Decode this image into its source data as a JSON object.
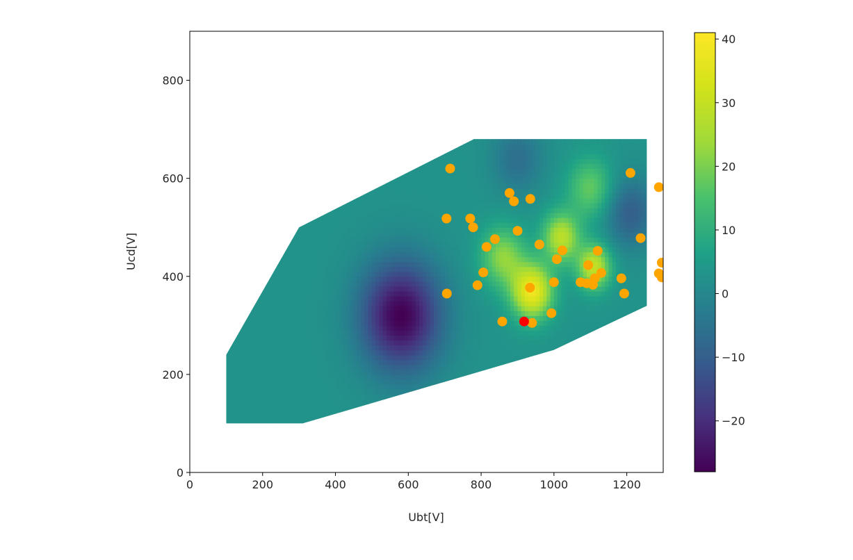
{
  "chart_data": {
    "type": "heatmap",
    "title": "",
    "xlabel": "Ubt[V]",
    "ylabel": "Ucd[V]",
    "xlim": [
      0,
      1300
    ],
    "ylim": [
      0,
      900
    ],
    "x_ticks": [
      0,
      200,
      400,
      600,
      800,
      1000,
      1200
    ],
    "y_ticks": [
      0,
      200,
      400,
      600,
      800
    ],
    "colormap": "viridis",
    "colorbar": {
      "min": -28,
      "max": 41,
      "ticks": [
        -20,
        -10,
        0,
        10,
        20,
        30,
        40
      ],
      "tick_labels": [
        "−20",
        "−10",
        "0",
        "10",
        "20",
        "30",
        "40"
      ]
    },
    "field_region": [
      [
        100,
        100
      ],
      [
        310,
        100
      ],
      [
        1000,
        250
      ],
      [
        1255,
        340
      ],
      [
        1255,
        680
      ],
      [
        780,
        680
      ],
      [
        300,
        500
      ],
      [
        100,
        240
      ]
    ],
    "field_features": [
      {
        "x": 580,
        "y": 320,
        "value": -28,
        "spread": 110
      },
      {
        "x": 940,
        "y": 370,
        "value": 38,
        "spread": 55
      },
      {
        "x": 1110,
        "y": 420,
        "value": 30,
        "spread": 45
      },
      {
        "x": 1020,
        "y": 480,
        "value": 28,
        "spread": 50
      },
      {
        "x": 860,
        "y": 440,
        "value": 22,
        "spread": 60
      },
      {
        "x": 1210,
        "y": 530,
        "value": -10,
        "spread": 70
      },
      {
        "x": 900,
        "y": 640,
        "value": -6,
        "spread": 70
      },
      {
        "x": 1100,
        "y": 580,
        "value": 18,
        "spread": 60
      }
    ],
    "field_base_value": 3,
    "series": [
      {
        "marker_color": "#ffa500",
        "points": [
          [
            715,
            620
          ],
          [
            705,
            518
          ],
          [
            770,
            518
          ],
          [
            778,
            500
          ],
          [
            706,
            365
          ],
          [
            790,
            382
          ],
          [
            806,
            408
          ],
          [
            815,
            460
          ],
          [
            838,
            476
          ],
          [
            858,
            308
          ],
          [
            878,
            570
          ],
          [
            890,
            553
          ],
          [
            900,
            493
          ],
          [
            935,
            558
          ],
          [
            960,
            465
          ],
          [
            934,
            377
          ],
          [
            940,
            305
          ],
          [
            993,
            325
          ],
          [
            1000,
            388
          ],
          [
            1008,
            435
          ],
          [
            1023,
            453
          ],
          [
            1073,
            388
          ],
          [
            1090,
            386
          ],
          [
            1094,
            423
          ],
          [
            1107,
            383
          ],
          [
            1112,
            396
          ],
          [
            1120,
            452
          ],
          [
            1130,
            407
          ],
          [
            1185,
            396
          ],
          [
            1193,
            365
          ],
          [
            1210,
            611
          ],
          [
            1238,
            478
          ],
          [
            1288,
            582
          ],
          [
            1288,
            406
          ],
          [
            1296,
            428
          ],
          [
            1296,
            398
          ]
        ]
      },
      {
        "marker_color": "#ff0000",
        "points": [
          [
            918,
            308
          ]
        ]
      }
    ]
  }
}
